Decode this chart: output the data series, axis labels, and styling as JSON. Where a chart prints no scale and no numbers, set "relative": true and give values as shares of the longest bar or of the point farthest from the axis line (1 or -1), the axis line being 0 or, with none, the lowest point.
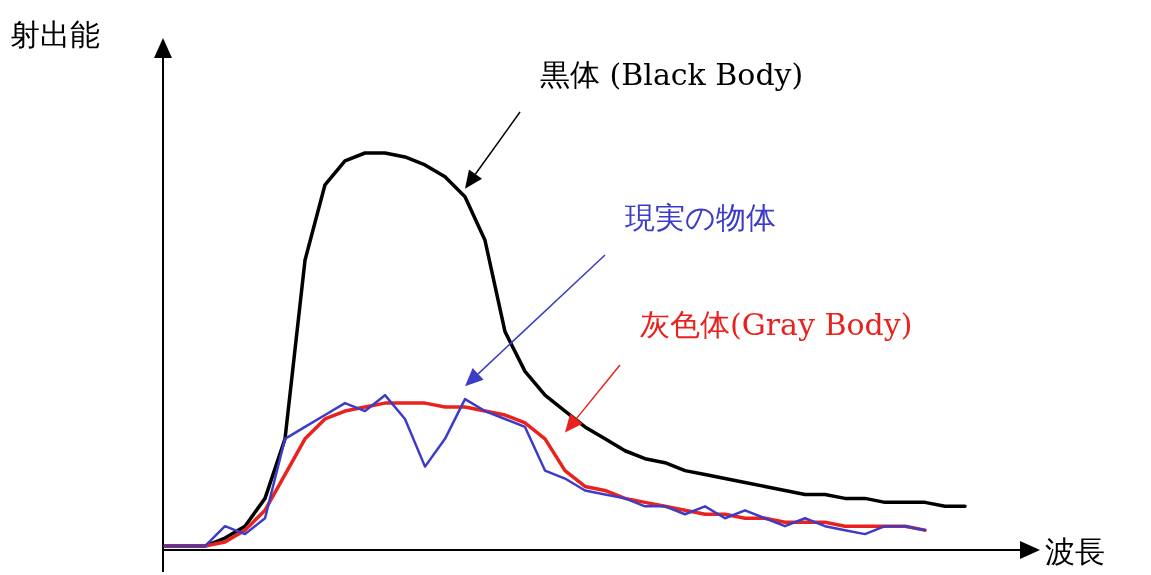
{
  "chart_data": {
    "type": "line",
    "relative": true,
    "xlabel": "波長",
    "ylabel": "射出能",
    "categories": [
      null,
      null,
      null,
      null,
      null,
      null,
      null,
      null,
      null,
      null,
      null,
      null,
      null,
      null,
      null,
      null,
      null,
      null,
      null,
      null,
      null,
      null,
      null,
      null,
      null,
      null,
      null,
      null,
      null,
      null,
      null,
      null,
      null,
      null,
      null,
      null,
      null,
      null,
      null,
      null,
      null
    ],
    "series": [
      {
        "name": "黒体 (Black Body)",
        "color": "#000000",
        "values": [
          0.01,
          0.01,
          0.01,
          0.03,
          0.06,
          0.13,
          0.28,
          0.73,
          0.92,
          0.98,
          1.0,
          1.0,
          0.99,
          0.97,
          0.94,
          0.89,
          0.78,
          0.55,
          0.45,
          0.39,
          0.35,
          0.31,
          0.28,
          0.25,
          0.23,
          0.22,
          0.2,
          0.19,
          0.18,
          0.17,
          0.16,
          0.15,
          0.14,
          0.14,
          0.13,
          0.13,
          0.12,
          0.12,
          0.12,
          0.11,
          0.11
        ]
      },
      {
        "name": "灰色体(Gray Body)",
        "color": "#e8231e",
        "values": [
          0.01,
          0.01,
          0.01,
          0.02,
          0.05,
          0.1,
          0.19,
          0.28,
          0.33,
          0.35,
          0.36,
          0.37,
          0.37,
          0.37,
          0.36,
          0.36,
          0.35,
          0.34,
          0.32,
          0.28,
          0.2,
          0.16,
          0.15,
          0.13,
          0.12,
          0.11,
          0.1,
          0.09,
          0.09,
          0.08,
          0.08,
          0.07,
          0.07,
          0.07,
          0.06,
          0.06,
          0.06,
          0.06,
          0.05,
          null,
          null
        ]
      },
      {
        "name": "現実の物体",
        "color": "#3c3cc8",
        "values": [
          0.01,
          0.01,
          0.01,
          0.06,
          0.04,
          0.08,
          0.28,
          0.31,
          0.34,
          0.37,
          0.35,
          0.39,
          0.33,
          0.21,
          0.28,
          0.38,
          0.35,
          0.33,
          0.31,
          0.2,
          0.18,
          0.15,
          0.14,
          0.13,
          0.11,
          0.11,
          0.09,
          0.11,
          0.08,
          0.1,
          0.08,
          0.06,
          0.08,
          0.06,
          0.05,
          0.04,
          0.06,
          0.06,
          0.05,
          null,
          null
        ]
      }
    ]
  }
}
